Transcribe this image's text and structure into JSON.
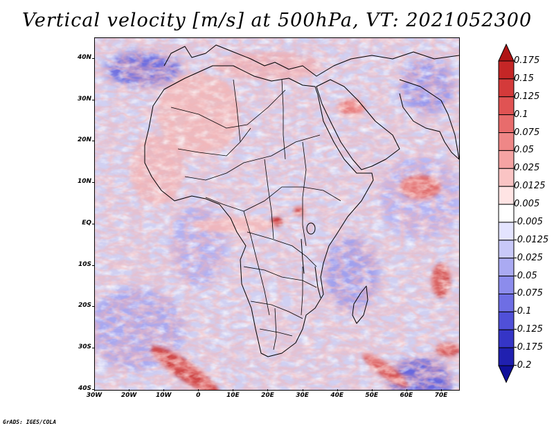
{
  "title": "Vertical velocity [m/s] at 500hPa, VT: 2021052300",
  "credit": "GrADS: IGES/COLA",
  "axes": {
    "lat_labels": [
      "40N",
      "30N",
      "20N",
      "10N",
      "EQ",
      "10S",
      "20S",
      "30S",
      "40S"
    ],
    "lon_labels": [
      "30W",
      "20W",
      "10W",
      "0",
      "10E",
      "20E",
      "30E",
      "40E",
      "50E",
      "60E",
      "70E"
    ],
    "lon_range": [
      -30,
      75
    ],
    "lat_range": [
      -40,
      45
    ]
  },
  "colorbar": {
    "levels": [
      "0.175",
      "0.15",
      "0.125",
      "0.1",
      "0.075",
      "0.05",
      "0.025",
      "0.0125",
      "0.005",
      "-0.005",
      "-0.0125",
      "-0.025",
      "-0.05",
      "-0.075",
      "-0.1",
      "-0.125",
      "-0.175",
      "-0.2"
    ],
    "colors": [
      "#b01515",
      "#c42626",
      "#d43a3a",
      "#e05353",
      "#e86c6c",
      "#ef8787",
      "#f5a3a3",
      "#fac4c4",
      "#ffe4e4",
      "#ffffff",
      "#e4e4ff",
      "#c8c8f8",
      "#aaaaf2",
      "#8c8cec",
      "#6e6ee4",
      "#5050d8",
      "#3535c6",
      "#2020b0",
      "#10109a"
    ]
  },
  "colors": {
    "background_field": "#d8d8f4",
    "ascent": "#e86c6c",
    "descent": "#6e6ee4",
    "borders": "#000000"
  }
}
